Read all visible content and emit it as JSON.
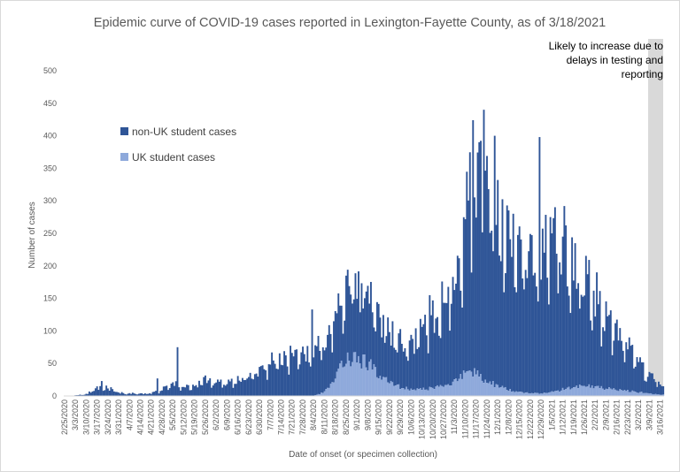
{
  "colors": {
    "non_uk": "#2F5597",
    "uk": "#8EA9DB",
    "shade": "#D9D9D9"
  },
  "chart_data": {
    "type": "bar",
    "stacked": true,
    "title": "Epidemic curve of COVID-19 cases reported in Lexington-Fayette County, as of 3/18/2021",
    "xlabel": "Date of onset (or specimen collection)",
    "ylabel": "Number of cases",
    "ylim": [
      0,
      500
    ],
    "yticks": [
      0,
      50,
      100,
      150,
      200,
      250,
      300,
      350,
      400,
      450,
      500
    ],
    "xrange": [
      "2020-02-25",
      "2021-03-18"
    ],
    "xtick_labels": [
      "2/25/2020",
      "3/3/2020",
      "3/10/2020",
      "3/17/2020",
      "3/24/2020",
      "3/31/2020",
      "4/7/2020",
      "4/14/2020",
      "4/21/2020",
      "4/28/2020",
      "5/5/2020",
      "5/12/2020",
      "5/19/2020",
      "5/26/2020",
      "6/2/2020",
      "6/9/2020",
      "6/16/2020",
      "6/23/2020",
      "6/30/2020",
      "7/7/2020",
      "7/14/2020",
      "7/21/2020",
      "7/28/2020",
      "8/4/2020",
      "8/11/2020",
      "8/18/2020",
      "8/25/2020",
      "9/1/2020",
      "9/8/2020",
      "9/15/2020",
      "9/22/2020",
      "9/29/2020",
      "10/6/2020",
      "10/13/2020",
      "10/20/2020",
      "10/27/2020",
      "11/3/2020",
      "11/10/2020",
      "11/17/2020",
      "11/24/2020",
      "12/1/2020",
      "12/8/2020",
      "12/15/2020",
      "12/22/2020",
      "12/29/2020",
      "1/5/2021",
      "1/12/2021",
      "1/19/2021",
      "1/26/2021",
      "2/2/2021",
      "2/9/2021",
      "2/16/2021",
      "2/23/2021",
      "3/2/2021",
      "3/9/2021",
      "3/16/2021"
    ],
    "legend": [
      "non-UK student cases",
      "UK student cases"
    ],
    "legend_position": "left",
    "annotation": "Likely to increase due to delays in testing and reporting",
    "annotation_lines": [
      "Likely to increase due to",
      "delays in testing and",
      "reporting"
    ],
    "shaded_from": "3/9/2021",
    "grid": false,
    "series": [
      {
        "name": "non-UK student cases",
        "weekly_points": [
          [
            "2020-02-25",
            0
          ],
          [
            "2020-03-03",
            1
          ],
          [
            "2020-03-10",
            3
          ],
          [
            "2020-03-17",
            11
          ],
          [
            "2020-03-24",
            12
          ],
          [
            "2020-03-31",
            5
          ],
          [
            "2020-04-07",
            4
          ],
          [
            "2020-04-14",
            3
          ],
          [
            "2020-04-21",
            4
          ],
          [
            "2020-04-28",
            9
          ],
          [
            "2020-05-05",
            20
          ],
          [
            "2020-05-12",
            13
          ],
          [
            "2020-05-19",
            15
          ],
          [
            "2020-05-26",
            24
          ],
          [
            "2020-06-02",
            20
          ],
          [
            "2020-06-09",
            19
          ],
          [
            "2020-06-16",
            24
          ],
          [
            "2020-06-23",
            28
          ],
          [
            "2020-06-30",
            42
          ],
          [
            "2020-07-07",
            50
          ],
          [
            "2020-07-14",
            58
          ],
          [
            "2020-07-21",
            60
          ],
          [
            "2020-07-28",
            64
          ],
          [
            "2020-08-04",
            72
          ],
          [
            "2020-08-11",
            80
          ],
          [
            "2020-08-18",
            88
          ],
          [
            "2020-08-25",
            95
          ],
          [
            "2020-09-01",
            98
          ],
          [
            "2020-09-08",
            104
          ],
          [
            "2020-09-15",
            84
          ],
          [
            "2020-09-22",
            72
          ],
          [
            "2020-09-29",
            68
          ],
          [
            "2020-10-06",
            64
          ],
          [
            "2020-10-13",
            82
          ],
          [
            "2020-10-20",
            102
          ],
          [
            "2020-10-27",
            122
          ],
          [
            "2020-11-03",
            160
          ],
          [
            "2020-11-10",
            228
          ],
          [
            "2020-11-17",
            300
          ],
          [
            "2020-11-24",
            272
          ],
          [
            "2020-12-01",
            238
          ],
          [
            "2020-12-08",
            212
          ],
          [
            "2020-12-15",
            195
          ],
          [
            "2020-12-22",
            208
          ],
          [
            "2020-12-29",
            200
          ],
          [
            "2021-01-05",
            222
          ],
          [
            "2021-01-12",
            212
          ],
          [
            "2021-01-19",
            192
          ],
          [
            "2021-01-26",
            162
          ],
          [
            "2021-02-02",
            132
          ],
          [
            "2021-02-09",
            112
          ],
          [
            "2021-02-16",
            92
          ],
          [
            "2021-02-23",
            68
          ],
          [
            "2021-03-02",
            45
          ],
          [
            "2021-03-09",
            30
          ],
          [
            "2021-03-16",
            14
          ]
        ],
        "peaks": [
          [
            "2020-03-20",
            23
          ],
          [
            "2020-04-25",
            27
          ],
          [
            "2020-05-08",
            75
          ],
          [
            "2020-08-03",
            133
          ],
          [
            "2020-08-25",
            185
          ],
          [
            "2020-09-09",
            142
          ],
          [
            "2020-10-18",
            155
          ],
          [
            "2020-11-15",
            424
          ],
          [
            "2020-11-22",
            440
          ],
          [
            "2020-11-29",
            400
          ],
          [
            "2020-12-28",
            398
          ],
          [
            "2021-01-04",
            275
          ],
          [
            "2021-01-12",
            245
          ]
        ]
      },
      {
        "name": "UK student cases",
        "weekly_points": [
          [
            "2020-02-25",
            0
          ],
          [
            "2020-08-04",
            0
          ],
          [
            "2020-08-11",
            6
          ],
          [
            "2020-08-18",
            30
          ],
          [
            "2020-08-25",
            62
          ],
          [
            "2020-09-01",
            58
          ],
          [
            "2020-09-08",
            50
          ],
          [
            "2020-09-15",
            34
          ],
          [
            "2020-09-22",
            22
          ],
          [
            "2020-09-29",
            14
          ],
          [
            "2020-10-06",
            10
          ],
          [
            "2020-10-13",
            10
          ],
          [
            "2020-10-20",
            12
          ],
          [
            "2020-10-27",
            16
          ],
          [
            "2020-11-03",
            22
          ],
          [
            "2020-11-10",
            34
          ],
          [
            "2020-11-17",
            36
          ],
          [
            "2020-11-24",
            22
          ],
          [
            "2020-12-01",
            16
          ],
          [
            "2020-12-08",
            10
          ],
          [
            "2020-12-15",
            6
          ],
          [
            "2020-12-22",
            4
          ],
          [
            "2020-12-29",
            4
          ],
          [
            "2021-01-05",
            6
          ],
          [
            "2021-01-12",
            10
          ],
          [
            "2021-01-19",
            14
          ],
          [
            "2021-01-26",
            16
          ],
          [
            "2021-02-02",
            14
          ],
          [
            "2021-02-09",
            12
          ],
          [
            "2021-02-16",
            10
          ],
          [
            "2021-02-23",
            8
          ],
          [
            "2021-03-02",
            6
          ],
          [
            "2021-03-09",
            4
          ],
          [
            "2021-03-16",
            2
          ]
        ]
      }
    ]
  }
}
